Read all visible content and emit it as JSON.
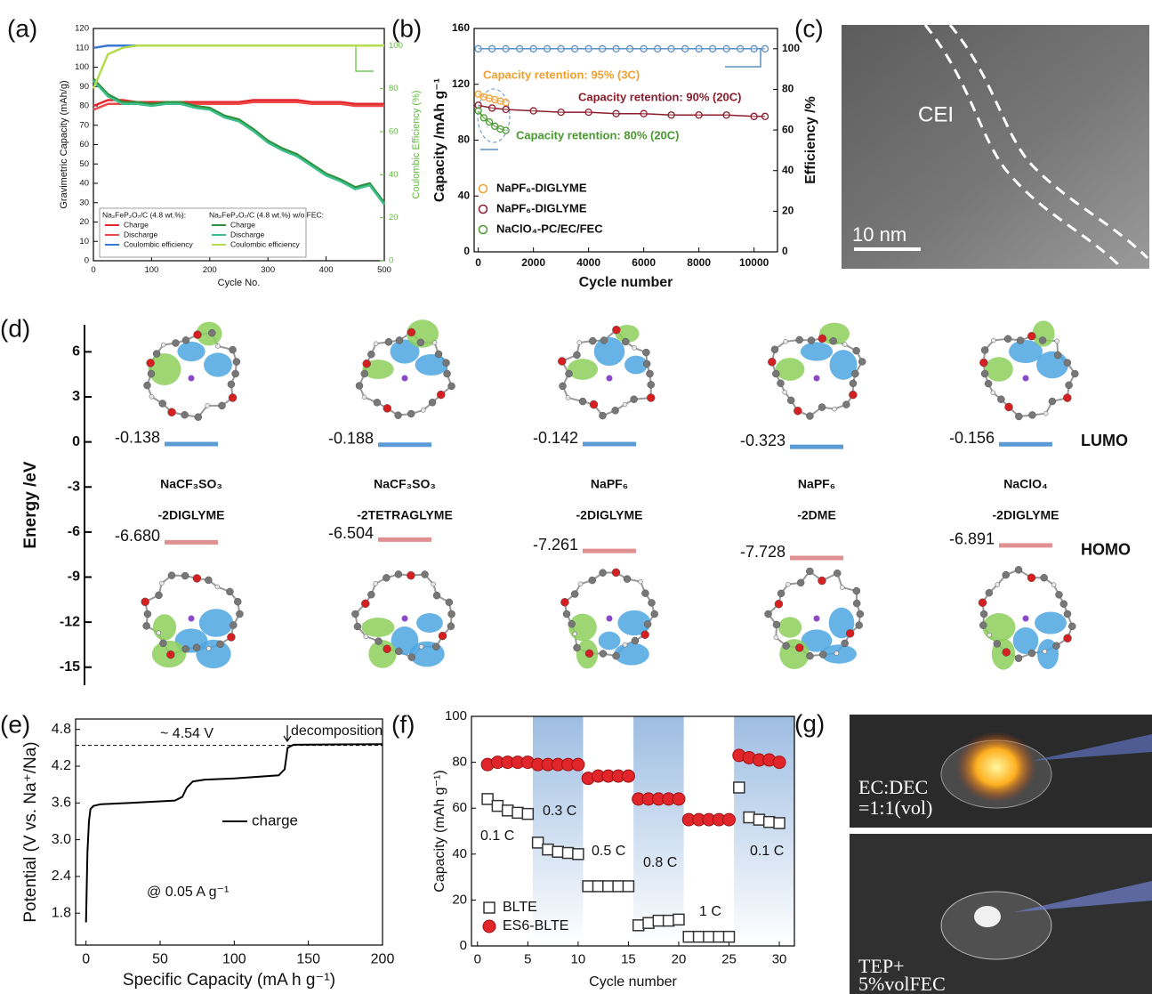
{
  "chart_data": [
    {
      "type": "line",
      "panel_label": "(a)",
      "x_label": "Cycle No.",
      "y_label": "Gravimetric Capacity (mAh/g)",
      "y2_label": "Coulombic Efficiency (%)",
      "xlim": [
        0,
        500
      ],
      "xticks": [
        0,
        100,
        200,
        300,
        400,
        500
      ],
      "ylim": [
        0,
        120
      ],
      "yticks": [
        0,
        10,
        20,
        30,
        40,
        50,
        60,
        70,
        80,
        90,
        100,
        110,
        120
      ],
      "y2lim": [
        0,
        108
      ],
      "y2ticks": [
        0,
        20,
        40,
        60,
        80,
        100
      ],
      "y2_color": "#5cbf3a",
      "legend_groups": [
        "Na₂FeP₂O₇/C (4.8 wt.%):",
        "Na₂FeP₂O₇/C (4.8 wt.%) w/o FEC:"
      ],
      "x": [
        0,
        25,
        50,
        75,
        100,
        125,
        150,
        175,
        200,
        225,
        250,
        275,
        300,
        325,
        350,
        375,
        400,
        425,
        450,
        475,
        500
      ],
      "series": [
        {
          "name": "Charge",
          "group": 0,
          "color": "#e3262b",
          "values": [
            80,
            83,
            83,
            82,
            82,
            82,
            82,
            82,
            82,
            82,
            82,
            83,
            83,
            83,
            83,
            82,
            82,
            82,
            81,
            81,
            81
          ]
        },
        {
          "name": "Discharge",
          "group": 0,
          "color": "#ef4a4a",
          "values": [
            78,
            81,
            81,
            81,
            81,
            81,
            81,
            81,
            81,
            81,
            81,
            82,
            82,
            82,
            82,
            81,
            81,
            81,
            80,
            80,
            80
          ]
        },
        {
          "name": "Coulombic efficiency",
          "group": 0,
          "color": "#3a78d8",
          "axis": "y2",
          "values": [
            99,
            100,
            100,
            100,
            100,
            100,
            100,
            100,
            100,
            100,
            100,
            100,
            100,
            100,
            100,
            100,
            100,
            100,
            100,
            100,
            100
          ]
        },
        {
          "name": "Charge",
          "group": 1,
          "color": "#2f8f3a",
          "values": [
            94,
            86,
            82,
            82,
            81,
            82,
            82,
            80,
            79,
            75,
            73,
            68,
            62,
            58,
            55,
            50,
            45,
            42,
            38,
            40,
            30
          ]
        },
        {
          "name": "Discharge",
          "group": 1,
          "color": "#3cbf8c",
          "values": [
            93,
            85,
            81,
            81,
            80,
            81,
            81,
            79,
            78,
            74,
            72,
            67,
            61,
            57,
            54,
            49,
            44,
            41,
            37,
            39,
            29
          ]
        },
        {
          "name": "Coulombic efficiency",
          "group": 1,
          "color": "#b5dc4e",
          "axis": "y2",
          "values": [
            80,
            96,
            99,
            100,
            100,
            100,
            100,
            100,
            100,
            100,
            100,
            100,
            100,
            100,
            100,
            100,
            100,
            100,
            100,
            100,
            100
          ]
        }
      ]
    },
    {
      "type": "line",
      "markers": true,
      "panel_label": "(b)",
      "x_label": "Cycle number",
      "y_label": "Capacity /mAh g⁻¹",
      "y2_label": "Efficiency /%",
      "xlim": [
        -150,
        10850
      ],
      "xticks": [
        0,
        2000,
        4000,
        6000,
        8000,
        10000
      ],
      "ylim": [
        0,
        160
      ],
      "yticks": [
        0,
        40,
        80,
        120,
        160
      ],
      "y2lim": [
        0,
        110
      ],
      "y2ticks": [
        0,
        20,
        40,
        60,
        80,
        100
      ],
      "annotations": [
        {
          "text": "Capacity retention: 95% (3C)",
          "color": "#f0a030"
        },
        {
          "text": "Capacity retention: 90% (20C)",
          "color": "#8a1c2c"
        },
        {
          "text": "Capacity retention: 80% (20C)",
          "color": "#4a9a30"
        }
      ],
      "series": [
        {
          "color": "#5b8fc4",
          "axis": "y2",
          "x": [
            0,
            500,
            1000,
            1500,
            2000,
            2500,
            3000,
            3500,
            4000,
            4500,
            5000,
            5500,
            6000,
            6500,
            7000,
            7500,
            8000,
            8500,
            9000,
            9500,
            10000,
            10400
          ],
          "values": [
            100,
            100,
            100,
            100,
            100,
            100,
            100,
            100,
            100,
            100,
            100,
            100,
            100,
            100,
            100,
            100,
            100,
            100,
            100,
            100,
            100,
            100
          ]
        },
        {
          "name": "NaPF₆-DIGLYME",
          "color": "#f0a030",
          "x": [
            0,
            200,
            400,
            600,
            800,
            1000
          ],
          "values": [
            113,
            111,
            110,
            109,
            108,
            107
          ]
        },
        {
          "name": "NaPF₆-DIGLYME",
          "color": "#8a1c2c",
          "x": [
            0,
            500,
            1000,
            2000,
            3000,
            4000,
            5000,
            6000,
            7000,
            8000,
            9000,
            10000,
            10400
          ],
          "values": [
            105,
            103,
            102,
            101,
            100,
            100,
            99,
            99,
            98,
            98,
            98,
            97,
            97
          ]
        },
        {
          "name": "NaClO₄-PC/EC/FEC",
          "color": "#4a9a30",
          "x": [
            0,
            200,
            400,
            600,
            800,
            1000
          ],
          "values": [
            101,
            96,
            93,
            90,
            88,
            87
          ]
        }
      ]
    },
    {
      "type": "energy_levels",
      "panel_label": "(d)",
      "y_label": "Energy /eV",
      "ylim": [
        -16.2,
        7.8
      ],
      "yticks": [
        6,
        3,
        0,
        -3,
        -6,
        -9,
        -12,
        -15
      ],
      "categories": [
        "NaCF₃SO₃",
        "NaCF₃SO₃",
        "NaPF₆",
        "NaPF₆",
        "NaClO₄"
      ],
      "solvents": [
        "-2DIGLYME",
        "-2TETRAGLYME",
        "-2DIGLYME",
        "-2DME",
        "-2DIGLYME"
      ],
      "series": [
        {
          "name": "LUMO",
          "color": "#5b9bd5",
          "values": [
            -0.138,
            -0.188,
            -0.142,
            -0.323,
            -0.156
          ]
        },
        {
          "name": "HOMO",
          "color": "#e09090",
          "values": [
            -6.68,
            -6.504,
            -7.261,
            -7.728,
            -6.891
          ],
          "value_labels": [
            "-6.680",
            "-6.504",
            "-7.261",
            "-7.728",
            "-6.891"
          ]
        }
      ]
    },
    {
      "type": "line",
      "panel_label": "(e)",
      "x_label": "Specific Capacity (mA h g⁻¹)",
      "y_label": "Potential (V vs. Na⁺/Na)",
      "xlim": [
        -7,
        200
      ],
      "xticks": [
        0,
        50,
        100,
        150,
        200
      ],
      "ylim": [
        1.28,
        4.97
      ],
      "yticks": [
        1.8,
        2.4,
        {
          "value": 3,
          "label": "3.0"
        },
        3.6,
        4.2,
        4.8
      ],
      "ref_line": 4.54,
      "annotations": [
        {
          "text": "~ 4.54 V"
        },
        {
          "text": "decomposition"
        },
        {
          "text": "@ 0.05 A g⁻¹"
        }
      ],
      "series": [
        {
          "name": "charge",
          "color": "#000000",
          "x": [
            0,
            1,
            2,
            3,
            5,
            10,
            30,
            60,
            65,
            68,
            72,
            80,
            100,
            130,
            134,
            136,
            140,
            200
          ],
          "values": [
            1.65,
            2.8,
            3.3,
            3.5,
            3.55,
            3.58,
            3.6,
            3.64,
            3.7,
            3.85,
            3.95,
            3.98,
            4.0,
            4.05,
            4.15,
            4.5,
            4.55,
            4.56
          ]
        }
      ]
    },
    {
      "type": "scatter",
      "panel_label": "(f)",
      "x_label": "Cycle number",
      "y_label": "Capacity (mAh g⁻¹)",
      "xlim": [
        -0.6,
        31.5
      ],
      "xticks": [
        0,
        5,
        10,
        15,
        20,
        25,
        30
      ],
      "ylim": [
        0,
        100
      ],
      "yticks": [
        0,
        20,
        40,
        60,
        80,
        100
      ],
      "shaded_ranges": [
        [
          5.5,
          10.5
        ],
        [
          15.5,
          20.5
        ],
        [
          25.5,
          31.5
        ]
      ],
      "annotations": [
        {
          "text": "0.1 C"
        },
        {
          "text": "0.3 C"
        },
        {
          "text": "0.5 C"
        },
        {
          "text": "0.8 C"
        },
        {
          "text": "1 C"
        },
        {
          "text": "0.1 C"
        }
      ],
      "x": [
        1,
        2,
        3,
        4,
        5,
        6,
        7,
        8,
        9,
        10,
        11,
        12,
        13,
        14,
        15,
        16,
        17,
        18,
        19,
        20,
        21,
        22,
        23,
        24,
        25,
        26,
        27,
        28,
        29,
        30
      ],
      "series": [
        {
          "name": "BLTE",
          "marker": "square",
          "color": "#333333",
          "values": [
            64,
            61,
            59,
            58,
            57.5,
            45,
            42,
            41,
            40.5,
            40,
            26,
            26,
            26,
            26,
            26,
            9,
            10,
            11,
            11,
            11.5,
            4,
            4,
            4,
            4,
            4,
            69,
            56,
            55,
            54,
            53.5
          ]
        },
        {
          "name": "ES6-BLTE",
          "marker": "circle",
          "color": "#e0262b",
          "values": [
            79,
            80,
            80,
            80,
            80,
            79,
            79,
            79,
            79,
            79,
            73,
            74,
            74,
            74,
            74,
            64,
            64,
            64,
            64,
            64,
            55,
            55,
            55,
            55,
            55,
            83,
            82,
            81,
            81,
            80
          ]
        }
      ]
    }
  ],
  "images": [
    {
      "panel_label": "(c)",
      "texts": [
        "CEI",
        "10 nm"
      ]
    },
    {
      "panel_label": "(g)",
      "texts": [
        "EC:DEC",
        "=1:1(vol)",
        "TEP+",
        "5%volFEC"
      ]
    }
  ]
}
